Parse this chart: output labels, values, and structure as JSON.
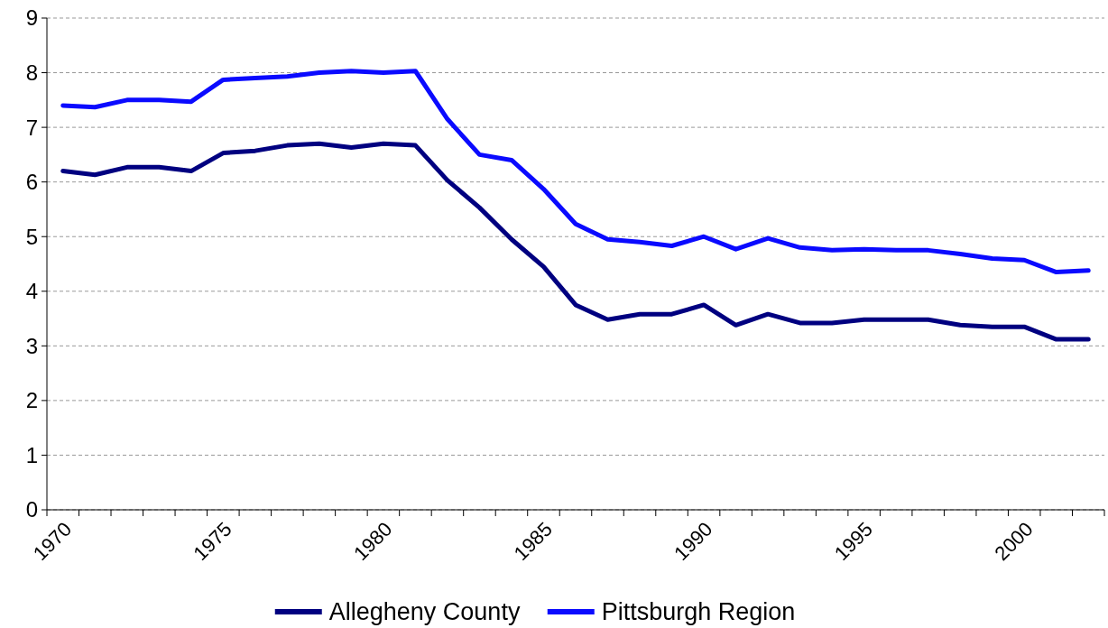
{
  "chart_data": {
    "type": "line",
    "categories": [
      "1970",
      null,
      null,
      null,
      null,
      "1975",
      null,
      null,
      null,
      null,
      "1980",
      null,
      null,
      null,
      null,
      "1985",
      null,
      null,
      null,
      null,
      "1990",
      null,
      null,
      null,
      null,
      "1995",
      null,
      null,
      null,
      null,
      "2000",
      null,
      null
    ],
    "series": [
      {
        "name": "Allegheny County",
        "color": "#000080",
        "values": [
          6.2,
          6.13,
          6.27,
          6.27,
          6.2,
          6.53,
          6.57,
          6.67,
          6.7,
          6.63,
          6.7,
          6.67,
          6.03,
          5.53,
          4.95,
          4.45,
          3.75,
          3.48,
          3.58,
          3.58,
          3.75,
          3.38,
          3.58,
          3.42,
          3.42,
          3.48,
          3.48,
          3.48,
          3.38,
          3.35,
          3.35,
          3.12,
          3.12
        ]
      },
      {
        "name": "Pittsburgh Region",
        "color": "#0a0aff",
        "values": [
          7.4,
          7.37,
          7.5,
          7.5,
          7.47,
          7.87,
          7.9,
          7.93,
          8.0,
          8.03,
          8.0,
          8.03,
          7.15,
          6.5,
          6.4,
          5.87,
          5.23,
          4.95,
          4.9,
          4.83,
          5.0,
          4.77,
          4.97,
          4.8,
          4.75,
          4.77,
          4.75,
          4.75,
          4.68,
          4.6,
          4.57,
          4.35,
          4.38
        ]
      }
    ],
    "ylim": [
      0,
      9
    ],
    "yticks": [
      0,
      1,
      2,
      3,
      4,
      5,
      6,
      7,
      8,
      9
    ],
    "grid": "y",
    "legend": "bottom",
    "marker": "none",
    "line_style": "solid"
  }
}
